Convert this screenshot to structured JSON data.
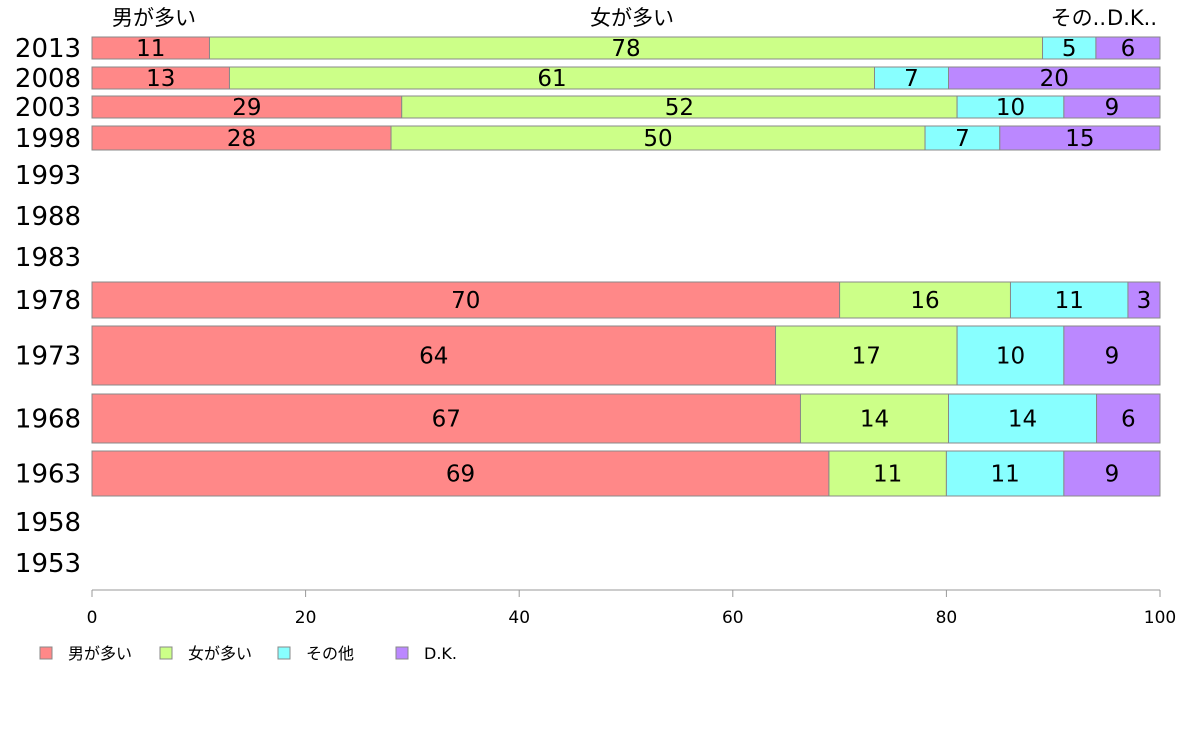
{
  "chart_data": {
    "type": "bar",
    "orientation": "horizontal",
    "stacked": true,
    "series": [
      {
        "name": "男が多い",
        "color": "#ff8888"
      },
      {
        "name": "女が多い",
        "color": "#ccff88"
      },
      {
        "name": "その他",
        "color": "#88ffff"
      },
      {
        "name": "D.K.",
        "color": "#bb88ff"
      }
    ],
    "top_labels": [
      "男が多い",
      "女が多い",
      "その..",
      "D.K.."
    ],
    "rows": [
      {
        "year": "2013",
        "values": [
          11,
          78,
          5,
          6
        ]
      },
      {
        "year": "2008",
        "values": [
          13,
          61,
          7,
          20
        ]
      },
      {
        "year": "2003",
        "values": [
          29,
          52,
          10,
          9
        ]
      },
      {
        "year": "1998",
        "values": [
          28,
          50,
          7,
          15
        ]
      },
      {
        "year": "1993",
        "values": null
      },
      {
        "year": "1988",
        "values": null
      },
      {
        "year": "1983",
        "values": null
      },
      {
        "year": "1978",
        "values": [
          70,
          16,
          11,
          3
        ]
      },
      {
        "year": "1973",
        "values": [
          64,
          17,
          10,
          9
        ]
      },
      {
        "year": "1968",
        "values": [
          67,
          14,
          14,
          6
        ]
      },
      {
        "year": "1963",
        "values": [
          69,
          11,
          11,
          9
        ]
      },
      {
        "year": "1958",
        "values": null
      },
      {
        "year": "1953",
        "values": null
      }
    ],
    "x_ticks": [
      "0",
      "20",
      "40",
      "60",
      "80",
      "100"
    ],
    "xlim": [
      0,
      100
    ],
    "legend_position": "bottom-left",
    "grid": false
  }
}
